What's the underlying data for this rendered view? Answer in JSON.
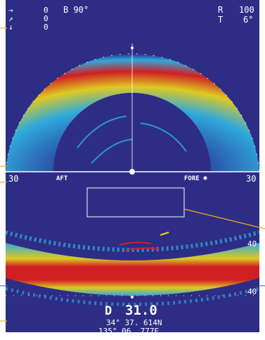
{
  "top_left": {
    "bearing_symbol": "→",
    "speed_symbol": "↗",
    "depth_symbol": "↓",
    "values": [
      "0",
      "0",
      "0"
    ]
  },
  "top_center": {
    "label": "B 90°"
  },
  "top_right": {
    "range_key": "R",
    "range_value": "100",
    "tilt_key": "T",
    "tilt_value": "6°"
  },
  "section_bar": {
    "left_scale": "30",
    "aft_label": "AFT",
    "fore_label": "FORE",
    "right_scale": "30"
  },
  "side_scale_right": "40",
  "bottom_scale_right": "40",
  "depth": {
    "key": "D",
    "value": "31.0"
  },
  "position": {
    "latitude": "34° 37. 614N",
    "longitude": "135° 06. 777E"
  },
  "colors": {
    "background": "#2e2d86",
    "echo_red": "#d81e1e",
    "echo_yellow": "#e8d21c",
    "echo_cyan": "#2fb0e0",
    "callout": "#f5a623"
  }
}
